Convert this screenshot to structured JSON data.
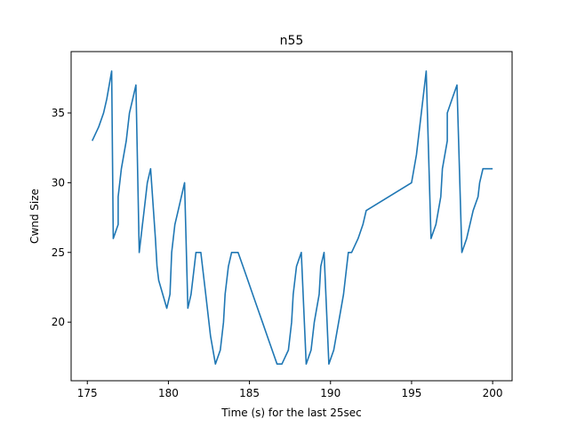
{
  "chart_data": {
    "type": "line",
    "title": "n55",
    "xlabel": "Time (s) for the last 25sec",
    "ylabel": "Cwnd Size",
    "xlim": [
      174.0,
      201.2
    ],
    "ylim": [
      15.8,
      39.4
    ],
    "xticks": [
      175,
      180,
      185,
      190,
      195,
      200
    ],
    "yticks": [
      20,
      25,
      30,
      35
    ],
    "grid": false,
    "color": "#1f77b4",
    "series": [
      {
        "x": [
          175.3,
          175.7,
          176.0,
          176.2,
          176.5,
          176.6,
          176.9,
          176.9,
          177.1,
          177.4,
          177.6,
          177.8,
          178.0,
          178.2,
          178.3,
          178.5,
          178.6,
          178.7,
          178.9,
          179.2,
          179.3,
          179.4,
          179.9,
          180.1,
          180.2,
          180.3,
          180.4,
          180.6,
          180.8,
          181.0,
          181.2,
          181.4,
          181.6,
          181.7,
          182.0,
          182.3,
          182.6,
          182.9,
          183.2,
          183.4,
          183.5,
          183.7,
          183.9,
          184.3,
          184.6,
          184.9,
          185.2,
          185.5,
          185.8,
          186.1,
          186.4,
          186.7,
          187.0,
          187.4,
          187.6,
          187.7,
          187.9,
          188.2,
          188.5,
          188.8,
          189.0,
          189.3,
          189.4,
          189.6,
          189.9,
          190.2,
          190.5,
          190.8,
          191.0,
          191.1,
          191.3,
          191.7,
          192.0,
          192.2,
          195.0,
          195.3,
          195.6,
          195.9,
          196.2,
          196.5,
          196.8,
          196.9,
          197.2,
          197.2,
          197.5,
          197.8,
          198.1,
          198.4,
          198.8,
          199.1,
          199.2,
          199.4,
          199.7,
          200.0
        ],
        "y": [
          33,
          34,
          35,
          36,
          38,
          26,
          27,
          29,
          31,
          33,
          35,
          36,
          37,
          25,
          26,
          28,
          29,
          30,
          31,
          26,
          24,
          23,
          21,
          22,
          25,
          26,
          27,
          28,
          29,
          30,
          21,
          22,
          24,
          25,
          25,
          22,
          19,
          17,
          18,
          20,
          22,
          24,
          25,
          25,
          24,
          23,
          22,
          21,
          20,
          19,
          18,
          17,
          17,
          18,
          20,
          22,
          24,
          25,
          17,
          18,
          20,
          22,
          24,
          25,
          17,
          18,
          20,
          22,
          24,
          25,
          25,
          26,
          27,
          28,
          30,
          32,
          35,
          38,
          26,
          27,
          29,
          31,
          33,
          35,
          36,
          37,
          25,
          26,
          28,
          29,
          30,
          31,
          31,
          31
        ]
      }
    ]
  }
}
